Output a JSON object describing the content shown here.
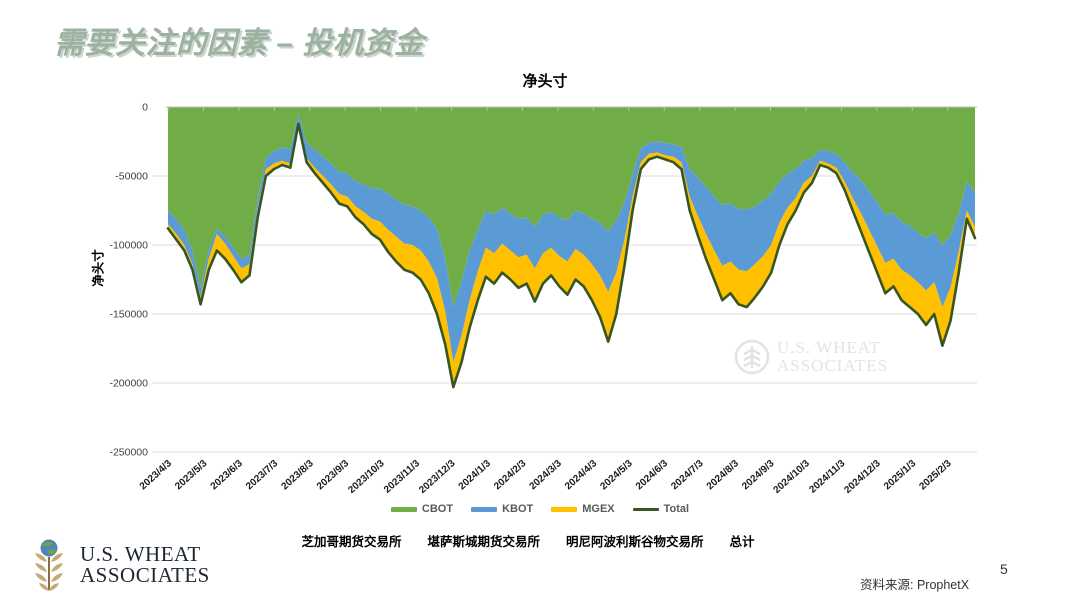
{
  "slide": {
    "title": "需要关注的因素 – 投机资金",
    "title_color": "#9cb2a0",
    "source_label": "资料来源: ProphetX",
    "page_number": "5"
  },
  "logo": {
    "line1": "U.S. WHEAT",
    "line2": "ASSOCIATES"
  },
  "watermark": {
    "line1": "U.S. WHEAT",
    "line2": "ASSOCIATES"
  },
  "chart_data": {
    "type": "area",
    "stacked": true,
    "title": "净头寸",
    "y_axis_title": "净头寸",
    "x_unit": "weekly observations, 2023/4/3 – 2025/2/24",
    "ylim": [
      -250000,
      0
    ],
    "grid": "horizontal",
    "legend_position": "bottom",
    "x_tick_labels": [
      "2023/4/3",
      "2023/5/3",
      "2023/6/3",
      "2023/7/3",
      "2023/8/3",
      "2023/9/3",
      "2023/10/3",
      "2023/11/3",
      "2023/12/3",
      "2024/1/3",
      "2024/2/3",
      "2024/3/3",
      "2024/4/3",
      "2024/5/3",
      "2024/6/3",
      "2024/7/3",
      "2024/8/3",
      "2024/9/3",
      "2024/10/3",
      "2024/11/3",
      "2024/12/3",
      "2025/1/3",
      "2025/2/3"
    ],
    "y_tick_labels": [
      "0",
      "-50000",
      "-100000",
      "-150000",
      "-200000",
      "-250000"
    ],
    "legend": [
      {
        "name": "CBOT",
        "color": "#70AD47"
      },
      {
        "name": "KBOT",
        "color": "#5B9BD5"
      },
      {
        "name": "MGEX",
        "color": "#FFC000"
      },
      {
        "name": "Total",
        "color": "#375623"
      }
    ],
    "exchange_labels": [
      "芝加哥期货交易所",
      "堪萨斯城期货交易所",
      "明尼阿波利斯谷物交易所",
      "总计"
    ],
    "series": [
      {
        "name": "CBOT",
        "type": "area",
        "color": "#70AD47",
        "values": [
          -75000,
          -81000,
          -89000,
          -104000,
          -131000,
          -104000,
          -88000,
          -94000,
          -102000,
          -110000,
          -107000,
          -67000,
          -37000,
          -32000,
          -29000,
          -31000,
          -5000,
          -26000,
          -31000,
          -36000,
          -41000,
          -47000,
          -48000,
          -54000,
          -56000,
          -59000,
          -59000,
          -63000,
          -67000,
          -71000,
          -72000,
          -75000,
          -80000,
          -88000,
          -110000,
          -145000,
          -126000,
          -104000,
          -89000,
          -75000,
          -78000,
          -73000,
          -77000,
          -81000,
          -80000,
          -87000,
          -78000,
          -76000,
          -80000,
          -82000,
          -75000,
          -77000,
          -81000,
          -84000,
          -90000,
          -82000,
          -69000,
          -49000,
          -30000,
          -26000,
          -25000,
          -26000,
          -27000,
          -29000,
          -45000,
          -51000,
          -58000,
          -65000,
          -71000,
          -70000,
          -74000,
          -74000,
          -72000,
          -68000,
          -63000,
          -54000,
          -48000,
          -45000,
          -39000,
          -37000,
          -31000,
          -32000,
          -34000,
          -40000,
          -47000,
          -53000,
          -61000,
          -69000,
          -78000,
          -77000,
          -83000,
          -86000,
          -91000,
          -95000,
          -91000,
          -100000,
          -93000,
          -77000,
          -54000,
          -62000
        ]
      },
      {
        "name": "KBOT",
        "type": "area",
        "color": "#5B9BD5",
        "values": [
          -10000,
          -11000,
          -11000,
          -10000,
          -7000,
          -6000,
          -4000,
          -5000,
          -6000,
          -7000,
          -7000,
          -7000,
          -8000,
          -9000,
          -10000,
          -10000,
          -5000,
          -11000,
          -13000,
          -14000,
          -15000,
          -16000,
          -17000,
          -18000,
          -20000,
          -22000,
          -24000,
          -26000,
          -27000,
          -28000,
          -28000,
          -29000,
          -32000,
          -36000,
          -38000,
          -40000,
          -40000,
          -36000,
          -30000,
          -27000,
          -28000,
          -26000,
          -27000,
          -28000,
          -27000,
          -30000,
          -28000,
          -26000,
          -28000,
          -30000,
          -28000,
          -30000,
          -33000,
          -38000,
          -44000,
          -38000,
          -27000,
          -16000,
          -10000,
          -8000,
          -8000,
          -9000,
          -9000,
          -11000,
          -20000,
          -28000,
          -34000,
          -39000,
          -44000,
          -42000,
          -44000,
          -45000,
          -42000,
          -40000,
          -37000,
          -30000,
          -25000,
          -21000,
          -16000,
          -13000,
          -8000,
          -9000,
          -10000,
          -14000,
          -19000,
          -24000,
          -28000,
          -32000,
          -35000,
          -33000,
          -35000,
          -36000,
          -36000,
          -38000,
          -36000,
          -45000,
          -38000,
          -28000,
          -21000,
          -25000
        ]
      },
      {
        "name": "MGEX",
        "type": "area",
        "color": "#FFC000",
        "values": [
          -3000,
          -4000,
          -4000,
          -4000,
          -5000,
          -8000,
          -12000,
          -11000,
          -10000,
          -10000,
          -8000,
          -6000,
          -5000,
          -4000,
          -3000,
          -3000,
          -2000,
          -3000,
          -4000,
          -5000,
          -6000,
          -7000,
          -7000,
          -8000,
          -9000,
          -11000,
          -13000,
          -16000,
          -18000,
          -19000,
          -20000,
          -21000,
          -23000,
          -26000,
          -24000,
          -18000,
          -19000,
          -20000,
          -21000,
          -21000,
          -22000,
          -21000,
          -21000,
          -22000,
          -21000,
          -24000,
          -22000,
          -20000,
          -22000,
          -24000,
          -22000,
          -23000,
          -26000,
          -30000,
          -36000,
          -30000,
          -19000,
          -10000,
          -5000,
          -4000,
          -3000,
          -3000,
          -4000,
          -5000,
          -10000,
          -14000,
          -18000,
          -21000,
          -25000,
          -23000,
          -25000,
          -26000,
          -24000,
          -22000,
          -20000,
          -16000,
          -12000,
          -9000,
          -7000,
          -5000,
          -3000,
          -3000,
          -4000,
          -6000,
          -9000,
          -13000,
          -16000,
          -19000,
          -22000,
          -20000,
          -22000,
          -23000,
          -23000,
          -25000,
          -23000,
          -28000,
          -24000,
          -15000,
          -6000,
          -8000
        ]
      },
      {
        "name": "Total",
        "type": "line",
        "color": "#375623",
        "values": [
          -88000,
          -96000,
          -104000,
          -118000,
          -143000,
          -118000,
          -104000,
          -110000,
          -118000,
          -127000,
          -122000,
          -80000,
          -50000,
          -45000,
          -42000,
          -44000,
          -12000,
          -40000,
          -48000,
          -55000,
          -62000,
          -70000,
          -72000,
          -80000,
          -85000,
          -92000,
          -96000,
          -105000,
          -112000,
          -118000,
          -120000,
          -125000,
          -135000,
          -150000,
          -172000,
          -203000,
          -185000,
          -160000,
          -140000,
          -123000,
          -128000,
          -120000,
          -125000,
          -131000,
          -128000,
          -141000,
          -128000,
          -122000,
          -130000,
          -136000,
          -125000,
          -130000,
          -140000,
          -152000,
          -170000,
          -150000,
          -115000,
          -75000,
          -45000,
          -38000,
          -36000,
          -38000,
          -40000,
          -45000,
          -75000,
          -93000,
          -110000,
          -125000,
          -140000,
          -135000,
          -143000,
          -145000,
          -138000,
          -130000,
          -120000,
          -100000,
          -85000,
          -75000,
          -62000,
          -55000,
          -42000,
          -44000,
          -48000,
          -60000,
          -75000,
          -90000,
          -105000,
          -120000,
          -135000,
          -130000,
          -140000,
          -145000,
          -150000,
          -158000,
          -150000,
          -173000,
          -155000,
          -120000,
          -81000,
          -95000
        ]
      }
    ],
    "colors": {
      "gridline": "#dcdcdc",
      "axis": "#bfbfbf",
      "x_tick_text": "#1a1a1a",
      "y_tick_text": "#404040"
    }
  }
}
